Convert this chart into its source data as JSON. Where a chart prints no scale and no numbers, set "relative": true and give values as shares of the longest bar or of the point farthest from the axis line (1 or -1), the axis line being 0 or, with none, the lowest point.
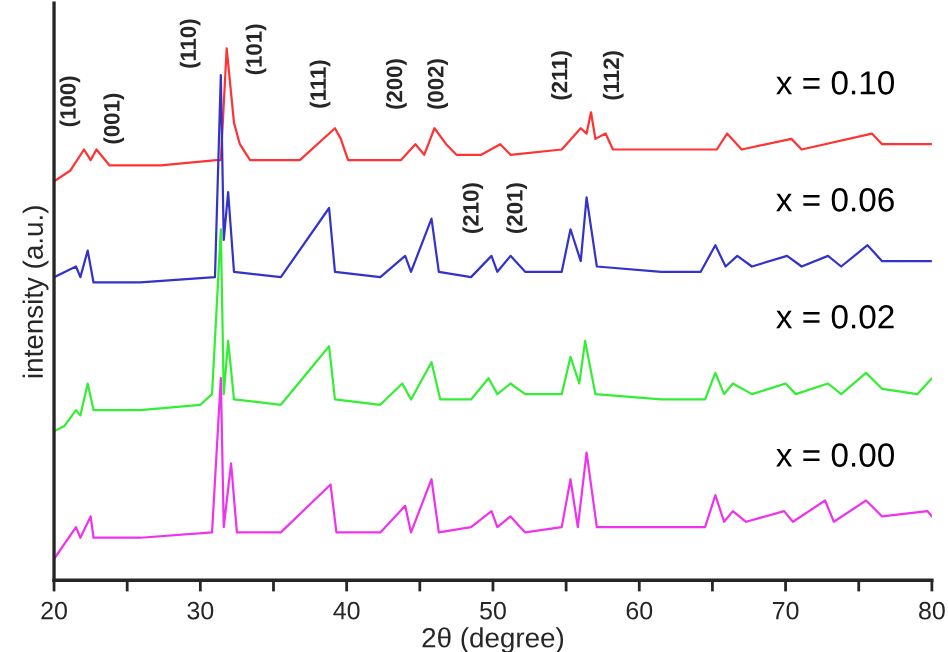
{
  "chart_data": {
    "type": "line",
    "relative": true,
    "xlabel": "2θ (degree)",
    "ylabel": "intensity (a.u.)",
    "xlim": [
      20,
      80
    ],
    "xticks": [
      20,
      {
        "value": 25,
        "label": null
      },
      30,
      {
        "value": 35,
        "label": null
      },
      40,
      {
        "value": 45,
        "label": null
      },
      50,
      {
        "value": 55,
        "label": null
      },
      60,
      {
        "value": 65,
        "label": null
      },
      70,
      {
        "value": 75,
        "label": null
      },
      80
    ],
    "grid": false,
    "legend": false,
    "marker": "none",
    "line_style": "solid",
    "series": [
      {
        "name": "x = 0.10",
        "color": "#ff3333",
        "x": [
          20.0,
          21.1,
          22.05,
          22.5,
          22.9,
          23.8,
          27.3,
          31.1,
          31.4,
          31.8,
          32.3,
          32.7,
          33.4,
          36.8,
          39.2,
          39.6,
          40.1,
          43.7,
          44.7,
          45.3,
          46.0,
          46.8,
          47.5,
          49.2,
          50.5,
          51.2,
          54.7,
          56.0,
          56.4,
          56.7,
          57.0,
          57.7,
          58.2,
          62.9,
          65.3,
          66.0,
          67.0,
          70.4,
          71.1,
          75.9,
          76.6,
          80.0
        ],
        "values": [
          0.75,
          0.77,
          0.81,
          0.79,
          0.81,
          0.78,
          0.78,
          0.79,
          0.79,
          1.0,
          0.86,
          0.82,
          0.79,
          0.79,
          0.85,
          0.83,
          0.79,
          0.79,
          0.82,
          0.8,
          0.85,
          0.82,
          0.8,
          0.8,
          0.82,
          0.8,
          0.81,
          0.85,
          0.84,
          0.88,
          0.83,
          0.84,
          0.81,
          0.81,
          0.81,
          0.84,
          0.81,
          0.83,
          0.81,
          0.84,
          0.82,
          0.82
        ]
      },
      {
        "name": "x = 0.06",
        "color": "#3333cc",
        "x": [
          20.0,
          21.5,
          21.8,
          22.3,
          22.7,
          25.9,
          31.0,
          31.4,
          31.6,
          31.9,
          32.3,
          35.5,
          38.8,
          39.2,
          42.3,
          44.0,
          44.4,
          45.8,
          46.3,
          48.5,
          49.9,
          50.3,
          51.2,
          52.2,
          54.7,
          55.3,
          56.0,
          56.4,
          57.1,
          61.5,
          64.2,
          65.2,
          65.9,
          66.7,
          67.7,
          70.1,
          71.1,
          72.9,
          73.8,
          75.6,
          76.6,
          80.0
        ],
        "values": [
          0.57,
          0.59,
          0.57,
          0.62,
          0.56,
          0.56,
          0.57,
          0.95,
          0.64,
          0.73,
          0.58,
          0.57,
          0.7,
          0.58,
          0.57,
          0.61,
          0.58,
          0.68,
          0.58,
          0.57,
          0.61,
          0.58,
          0.61,
          0.58,
          0.58,
          0.66,
          0.6,
          0.72,
          0.59,
          0.58,
          0.58,
          0.63,
          0.59,
          0.61,
          0.59,
          0.61,
          0.59,
          0.61,
          0.59,
          0.63,
          0.6,
          0.6
        ]
      },
      {
        "name": "x = 0.02",
        "color": "#33ee33",
        "x": [
          20.0,
          20.7,
          21.5,
          21.8,
          22.3,
          22.7,
          25.9,
          30.0,
          30.8,
          31.4,
          31.6,
          31.9,
          32.3,
          35.5,
          38.8,
          39.2,
          42.3,
          43.8,
          44.4,
          45.8,
          46.4,
          48.5,
          49.7,
          50.3,
          51.2,
          52.2,
          54.7,
          55.3,
          55.9,
          56.3,
          57.0,
          61.5,
          64.5,
          65.2,
          65.8,
          66.4,
          67.7,
          70.0,
          70.7,
          72.9,
          73.8,
          75.5,
          76.6,
          79.0,
          80.0
        ],
        "values": [
          0.28,
          0.29,
          0.32,
          0.31,
          0.37,
          0.32,
          0.32,
          0.33,
          0.35,
          0.66,
          0.35,
          0.45,
          0.34,
          0.33,
          0.44,
          0.34,
          0.33,
          0.37,
          0.34,
          0.41,
          0.34,
          0.34,
          0.38,
          0.35,
          0.37,
          0.35,
          0.35,
          0.42,
          0.37,
          0.45,
          0.35,
          0.34,
          0.34,
          0.39,
          0.35,
          0.37,
          0.35,
          0.37,
          0.35,
          0.37,
          0.35,
          0.39,
          0.36,
          0.35,
          0.38
        ]
      },
      {
        "name": "x = 0.00",
        "color": "#ee33ee",
        "x": [
          20.0,
          21.5,
          21.8,
          22.5,
          22.7,
          25.9,
          30.8,
          31.4,
          31.6,
          32.1,
          32.5,
          35.5,
          38.9,
          39.3,
          42.3,
          44.0,
          44.4,
          45.8,
          46.3,
          48.5,
          49.9,
          50.3,
          51.2,
          52.2,
          54.7,
          55.3,
          55.8,
          56.4,
          57.1,
          61.5,
          64.5,
          65.2,
          65.8,
          66.4,
          67.3,
          69.9,
          70.5,
          72.7,
          73.3,
          75.5,
          76.6,
          79.7,
          80.0
        ],
        "values": [
          0.04,
          0.1,
          0.08,
          0.12,
          0.08,
          0.08,
          0.09,
          0.38,
          0.1,
          0.22,
          0.09,
          0.09,
          0.18,
          0.09,
          0.09,
          0.14,
          0.09,
          0.19,
          0.09,
          0.1,
          0.13,
          0.1,
          0.12,
          0.09,
          0.1,
          0.19,
          0.1,
          0.24,
          0.1,
          0.1,
          0.1,
          0.16,
          0.11,
          0.13,
          0.11,
          0.13,
          0.11,
          0.15,
          0.11,
          0.15,
          0.12,
          0.13,
          0.12
        ]
      }
    ],
    "annotations": [
      "(100)",
      "(001)",
      "(110)",
      "(101)",
      "(111)",
      "(200)",
      "(002)",
      "(211)",
      "(112)",
      "(210)",
      "(201)"
    ]
  }
}
